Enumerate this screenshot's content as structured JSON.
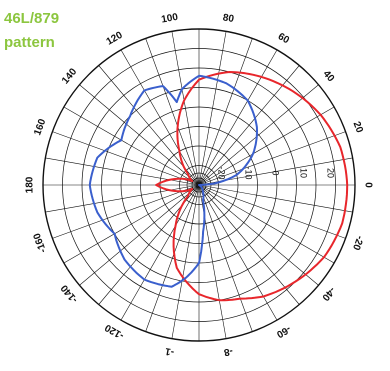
{
  "header": {
    "line1": "46L/879",
    "line2": "pattern"
  },
  "chart_data": {
    "type": "polar-line",
    "title": "",
    "angle_unit": "degrees",
    "angle_labels": [
      "0",
      "20",
      "40",
      "60",
      "80",
      "100",
      "120",
      "140",
      "160",
      "180",
      "-160",
      "-140",
      "-120",
      "-1",
      "-8",
      "-60",
      "-40",
      "-20"
    ],
    "radial_scale_db": {
      "min": -30,
      "max": 10
    },
    "radial_labels": [
      "-20",
      "-10",
      "0",
      "10",
      "20"
    ],
    "grid": true,
    "series": [
      {
        "color": "#e8262b",
        "angles": [
          0,
          15,
          30,
          45,
          60,
          75,
          90,
          100,
          110,
          120,
          135,
          150,
          165,
          180,
          195,
          210,
          225,
          240,
          255,
          270,
          280,
          290,
          300,
          315,
          330,
          345
        ],
        "values": [
          8,
          7.5,
          6,
          4,
          2,
          0,
          -3,
          -8,
          -14,
          -20,
          -26,
          -28,
          -24,
          -19,
          -24,
          -28,
          -26,
          -18,
          -8,
          -2,
          0,
          1,
          3,
          5,
          7,
          8
        ]
      },
      {
        "color": "#3a5fcd",
        "angles": [
          0,
          15,
          30,
          45,
          60,
          75,
          90,
          100,
          105,
          110,
          120,
          135,
          150,
          165,
          180,
          195,
          210,
          225,
          240,
          255,
          262,
          270,
          275,
          285,
          300,
          315,
          330,
          345
        ],
        "values": [
          -30,
          -20,
          -14,
          -9,
          -5,
          -3,
          -2,
          -5,
          -8,
          -3,
          -2,
          -5,
          -7,
          -3,
          -2,
          -3,
          -5,
          -3,
          -2,
          -3,
          -6,
          -10,
          -18,
          -26,
          -28,
          -29,
          -30,
          -30
        ]
      }
    ]
  }
}
